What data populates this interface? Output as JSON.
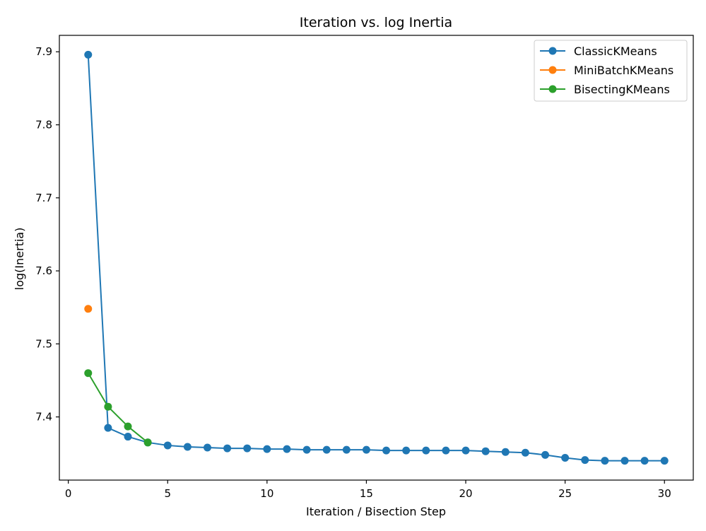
{
  "chart_data": {
    "type": "line",
    "title": "Iteration vs. log Inertia",
    "xlabel": "Iteration / Bisection Step",
    "ylabel": "log(Inertia)",
    "xlim": [
      -0.45,
      31.45
    ],
    "ylim": [
      7.3135,
      7.9225
    ],
    "x_ticks": [
      "0",
      "5",
      "10",
      "15",
      "20",
      "25",
      "30"
    ],
    "x_tick_values": [
      0,
      5,
      10,
      15,
      20,
      25,
      30
    ],
    "y_ticks": [
      "7.4",
      "7.5",
      "7.6",
      "7.7",
      "7.8",
      "7.9"
    ],
    "y_tick_values": [
      7.4,
      7.5,
      7.6,
      7.7,
      7.8,
      7.9
    ],
    "grid": false,
    "legend_position": "top-right",
    "series": [
      {
        "name": "ClassicKMeans",
        "color": "#1f77b4",
        "x": [
          1,
          2,
          3,
          4,
          5,
          6,
          7,
          8,
          9,
          10,
          11,
          12,
          13,
          14,
          15,
          16,
          17,
          18,
          19,
          20,
          21,
          22,
          23,
          24,
          25,
          26,
          27,
          28,
          29,
          30
        ],
        "y": [
          7.896,
          7.385,
          7.373,
          7.365,
          7.361,
          7.359,
          7.358,
          7.357,
          7.357,
          7.356,
          7.356,
          7.355,
          7.355,
          7.355,
          7.355,
          7.354,
          7.354,
          7.354,
          7.354,
          7.354,
          7.353,
          7.352,
          7.351,
          7.348,
          7.344,
          7.341,
          7.34,
          7.34,
          7.34,
          7.34
        ]
      },
      {
        "name": "MiniBatchKMeans",
        "color": "#ff7f0e",
        "x": [
          1
        ],
        "y": [
          7.548
        ]
      },
      {
        "name": "BisectingKMeans",
        "color": "#2ca02c",
        "x": [
          1,
          2,
          3,
          4
        ],
        "y": [
          7.46,
          7.414,
          7.387,
          7.365
        ]
      }
    ]
  }
}
